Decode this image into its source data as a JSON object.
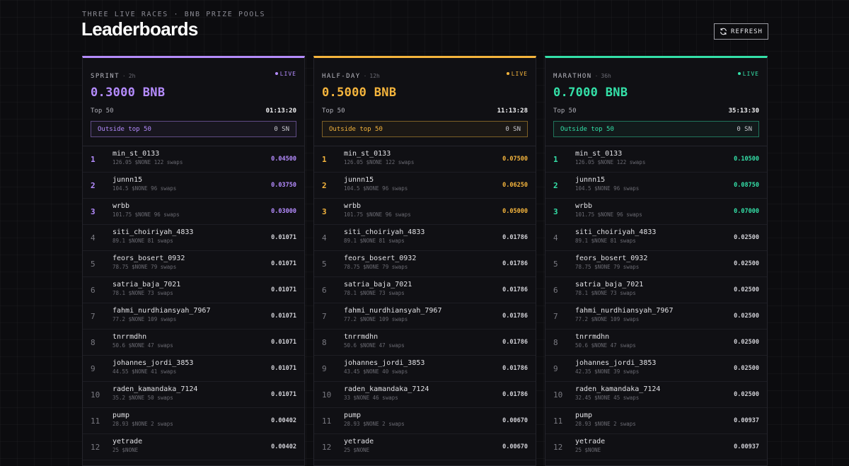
{
  "header": {
    "kicker": "THREE LIVE RACES · BNB PRIZE POOLS",
    "title": "Leaderboards",
    "refresh_label": "REFRESH",
    "refresh_icon": "refresh-icon"
  },
  "races": [
    {
      "name": "SPRINT",
      "separator": "·",
      "duration": "2h",
      "live_label": "LIVE",
      "prize": "0.3000 BNB",
      "top_label": "Top 50",
      "timer": "01:13:20",
      "outside_label": "Outside top 50",
      "outside_value": "0 SN",
      "accent": "#b58cff",
      "entries": [
        {
          "rank": "1",
          "name": "min_st_0133",
          "stats": "126.05 $NONE 122 swaps",
          "reward": "0.04500"
        },
        {
          "rank": "2",
          "name": "junnn15",
          "stats": "104.5 $NONE 96 swaps",
          "reward": "0.03750"
        },
        {
          "rank": "3",
          "name": "wrbb",
          "stats": "101.75 $NONE 96 swaps",
          "reward": "0.03000"
        },
        {
          "rank": "4",
          "name": "siti_choiriyah_4833",
          "stats": "89.1 $NONE 81 swaps",
          "reward": "0.01071"
        },
        {
          "rank": "5",
          "name": "feors_bosert_0932",
          "stats": "78.75 $NONE 79 swaps",
          "reward": "0.01071"
        },
        {
          "rank": "6",
          "name": "satria_baja_7021",
          "stats": "78.1 $NONE 73 swaps",
          "reward": "0.01071"
        },
        {
          "rank": "7",
          "name": "fahmi_nurdhiansyah_7967",
          "stats": "77.2 $NONE 109 swaps",
          "reward": "0.01071"
        },
        {
          "rank": "8",
          "name": "tnrrmdhn",
          "stats": "50.6 $NONE 47 swaps",
          "reward": "0.01071"
        },
        {
          "rank": "9",
          "name": "johannes_jordi_3853",
          "stats": "44.55 $NONE 41 swaps",
          "reward": "0.01071"
        },
        {
          "rank": "10",
          "name": "raden_kamandaka_7124",
          "stats": "35.2 $NONE 50 swaps",
          "reward": "0.01071"
        },
        {
          "rank": "11",
          "name": "pump",
          "stats": "28.93 $NONE 2 swaps",
          "reward": "0.00402"
        },
        {
          "rank": "12",
          "name": "yetrade",
          "stats": "25 $NONE",
          "reward": "0.00402"
        }
      ]
    },
    {
      "name": "HALF-DAY",
      "separator": "·",
      "duration": "12h",
      "live_label": "LIVE",
      "prize": "0.5000 BNB",
      "top_label": "Top 50",
      "timer": "11:13:28",
      "outside_label": "Outside top 50",
      "outside_value": "0 SN",
      "accent": "#f5b53d",
      "entries": [
        {
          "rank": "1",
          "name": "min_st_0133",
          "stats": "126.05 $NONE 122 swaps",
          "reward": "0.07500"
        },
        {
          "rank": "2",
          "name": "junnn15",
          "stats": "104.5 $NONE 96 swaps",
          "reward": "0.06250"
        },
        {
          "rank": "3",
          "name": "wrbb",
          "stats": "101.75 $NONE 96 swaps",
          "reward": "0.05000"
        },
        {
          "rank": "4",
          "name": "siti_choiriyah_4833",
          "stats": "89.1 $NONE 81 swaps",
          "reward": "0.01786"
        },
        {
          "rank": "5",
          "name": "feors_bosert_0932",
          "stats": "78.75 $NONE 79 swaps",
          "reward": "0.01786"
        },
        {
          "rank": "6",
          "name": "satria_baja_7021",
          "stats": "78.1 $NONE 73 swaps",
          "reward": "0.01786"
        },
        {
          "rank": "7",
          "name": "fahmi_nurdhiansyah_7967",
          "stats": "77.2 $NONE 109 swaps",
          "reward": "0.01786"
        },
        {
          "rank": "8",
          "name": "tnrrmdhn",
          "stats": "50.6 $NONE 47 swaps",
          "reward": "0.01786"
        },
        {
          "rank": "9",
          "name": "johannes_jordi_3853",
          "stats": "43.45 $NONE 40 swaps",
          "reward": "0.01786"
        },
        {
          "rank": "10",
          "name": "raden_kamandaka_7124",
          "stats": "33 $NONE 46 swaps",
          "reward": "0.01786"
        },
        {
          "rank": "11",
          "name": "pump",
          "stats": "28.93 $NONE 2 swaps",
          "reward": "0.00670"
        },
        {
          "rank": "12",
          "name": "yetrade",
          "stats": "25 $NONE",
          "reward": "0.00670"
        }
      ]
    },
    {
      "name": "MARATHON",
      "separator": "·",
      "duration": "36h",
      "live_label": "LIVE",
      "prize": "0.7000 BNB",
      "top_label": "Top 50",
      "timer": "35:13:30",
      "outside_label": "Outside top 50",
      "outside_value": "0 SN",
      "accent": "#34e0a8",
      "entries": [
        {
          "rank": "1",
          "name": "min_st_0133",
          "stats": "126.05 $NONE 122 swaps",
          "reward": "0.10500"
        },
        {
          "rank": "2",
          "name": "junnn15",
          "stats": "104.5 $NONE 96 swaps",
          "reward": "0.08750"
        },
        {
          "rank": "3",
          "name": "wrbb",
          "stats": "101.75 $NONE 96 swaps",
          "reward": "0.07000"
        },
        {
          "rank": "4",
          "name": "siti_choiriyah_4833",
          "stats": "89.1 $NONE 81 swaps",
          "reward": "0.02500"
        },
        {
          "rank": "5",
          "name": "feors_bosert_0932",
          "stats": "78.75 $NONE 79 swaps",
          "reward": "0.02500"
        },
        {
          "rank": "6",
          "name": "satria_baja_7021",
          "stats": "78.1 $NONE 73 swaps",
          "reward": "0.02500"
        },
        {
          "rank": "7",
          "name": "fahmi_nurdhiansyah_7967",
          "stats": "77.2 $NONE 109 swaps",
          "reward": "0.02500"
        },
        {
          "rank": "8",
          "name": "tnrrmdhn",
          "stats": "50.6 $NONE 47 swaps",
          "reward": "0.02500"
        },
        {
          "rank": "9",
          "name": "johannes_jordi_3853",
          "stats": "42.35 $NONE 39 swaps",
          "reward": "0.02500"
        },
        {
          "rank": "10",
          "name": "raden_kamandaka_7124",
          "stats": "32.45 $NONE 45 swaps",
          "reward": "0.02500"
        },
        {
          "rank": "11",
          "name": "pump",
          "stats": "28.93 $NONE 2 swaps",
          "reward": "0.00937"
        },
        {
          "rank": "12",
          "name": "yetrade",
          "stats": "25 $NONE",
          "reward": "0.00937"
        }
      ]
    }
  ]
}
